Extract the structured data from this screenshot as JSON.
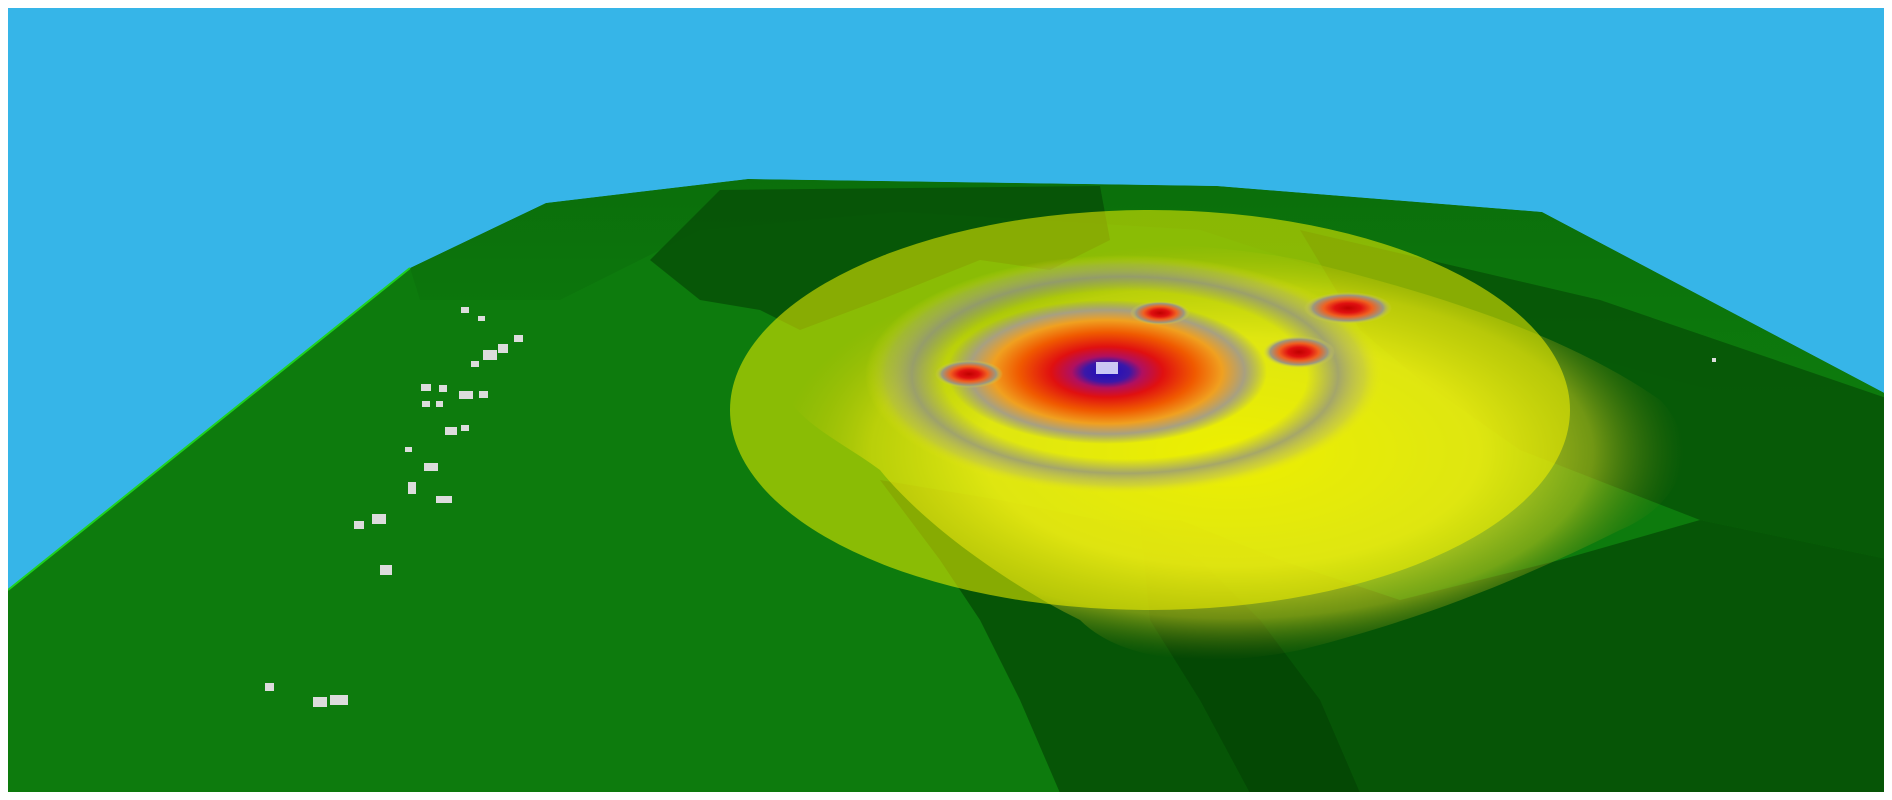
{
  "scene": {
    "kind": "3d-terrain-heatmap",
    "colors": {
      "frame": "#ffffff",
      "sky": "#36b5e8",
      "terrain_base": "#0d7b0d",
      "terrain_light": "#128a12",
      "terrain_shadow": "#064f06",
      "terrain_dark": "#043f04",
      "terrain_edge": "#1fd21f",
      "heat_yellow": "#f2f200",
      "heat_pale": "#dede3a",
      "heat_gray": "#8f8f8a",
      "heat_orange": "#f08a00",
      "heat_red": "#e01010",
      "heat_blue": "#2010b8",
      "building": "#dcdcdc",
      "building_shade": "#9a9a9a"
    },
    "heat_sources": {
      "central_count": 1,
      "satellite_count": 4
    },
    "building_cluster_count": 2
  }
}
